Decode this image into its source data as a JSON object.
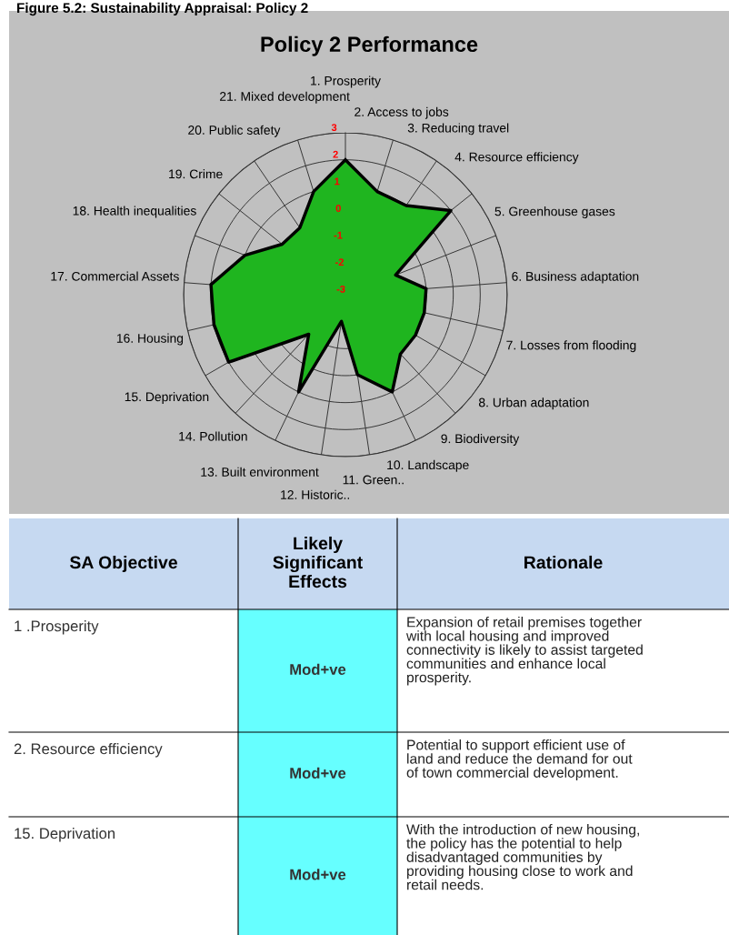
{
  "chart_data": [
    {
      "type": "radar",
      "title": "Policy 2 Performance",
      "annotations": [
        "Figure 5.2: Sustainability Appraisal: Policy 2"
      ],
      "categories": [
        "1. Prosperity",
        "2. Access to jobs",
        "3. Reducing travel",
        "4. Resource efficiency",
        "5. Greenhouse gases",
        "6. Business adaptation",
        "7. Losses from flooding",
        "8. Urban adaptation",
        "9. Biodiversity",
        "10. Landscape",
        "11. Green..",
        "12. Historic..",
        "13. Built environment",
        "14. Pollution",
        "15. Deprivation",
        "16. Housing",
        "17. Commercial Assets",
        "18. Health inequalities",
        "19. Crime",
        "20. Public safety",
        "21. Mixed development"
      ],
      "series": [
        {
          "color": "#1fb51f",
          "values": [
            2,
            1,
            1,
            2,
            -1,
            0,
            0,
            0,
            0,
            1,
            0,
            -2,
            1,
            -1,
            2,
            2,
            2,
            1,
            0,
            0,
            1
          ]
        }
      ],
      "ylim": [
        -3,
        3
      ],
      "yticks": [
        -3,
        -2,
        -1,
        0,
        1,
        2,
        3
      ],
      "grid": true,
      "marker": "none",
      "legend": false
    },
    {
      "type": "other",
      "annotations": [
        "SA Objective",
        "Likely\nSignificant\nEffects",
        "Rationale",
        "1 .Prosperity",
        "Mod+ve",
        "Expansion of retail premises together\nwith local housing and improved\nconnectivity is likely to assist targeted\ncommunities and enhance local\nprosperity.",
        "2. Resource efficiency",
        "Mod+ve",
        "Potential to support efficient use of\nland and reduce the demand for out\nof town commercial development.",
        "15. Deprivation",
        "Mod+ve",
        "With the introduction of new housing,\nthe policy has the potential to help\ndisadvantaged communities by\nproviding housing close to work and\nretail needs."
      ]
    }
  ]
}
